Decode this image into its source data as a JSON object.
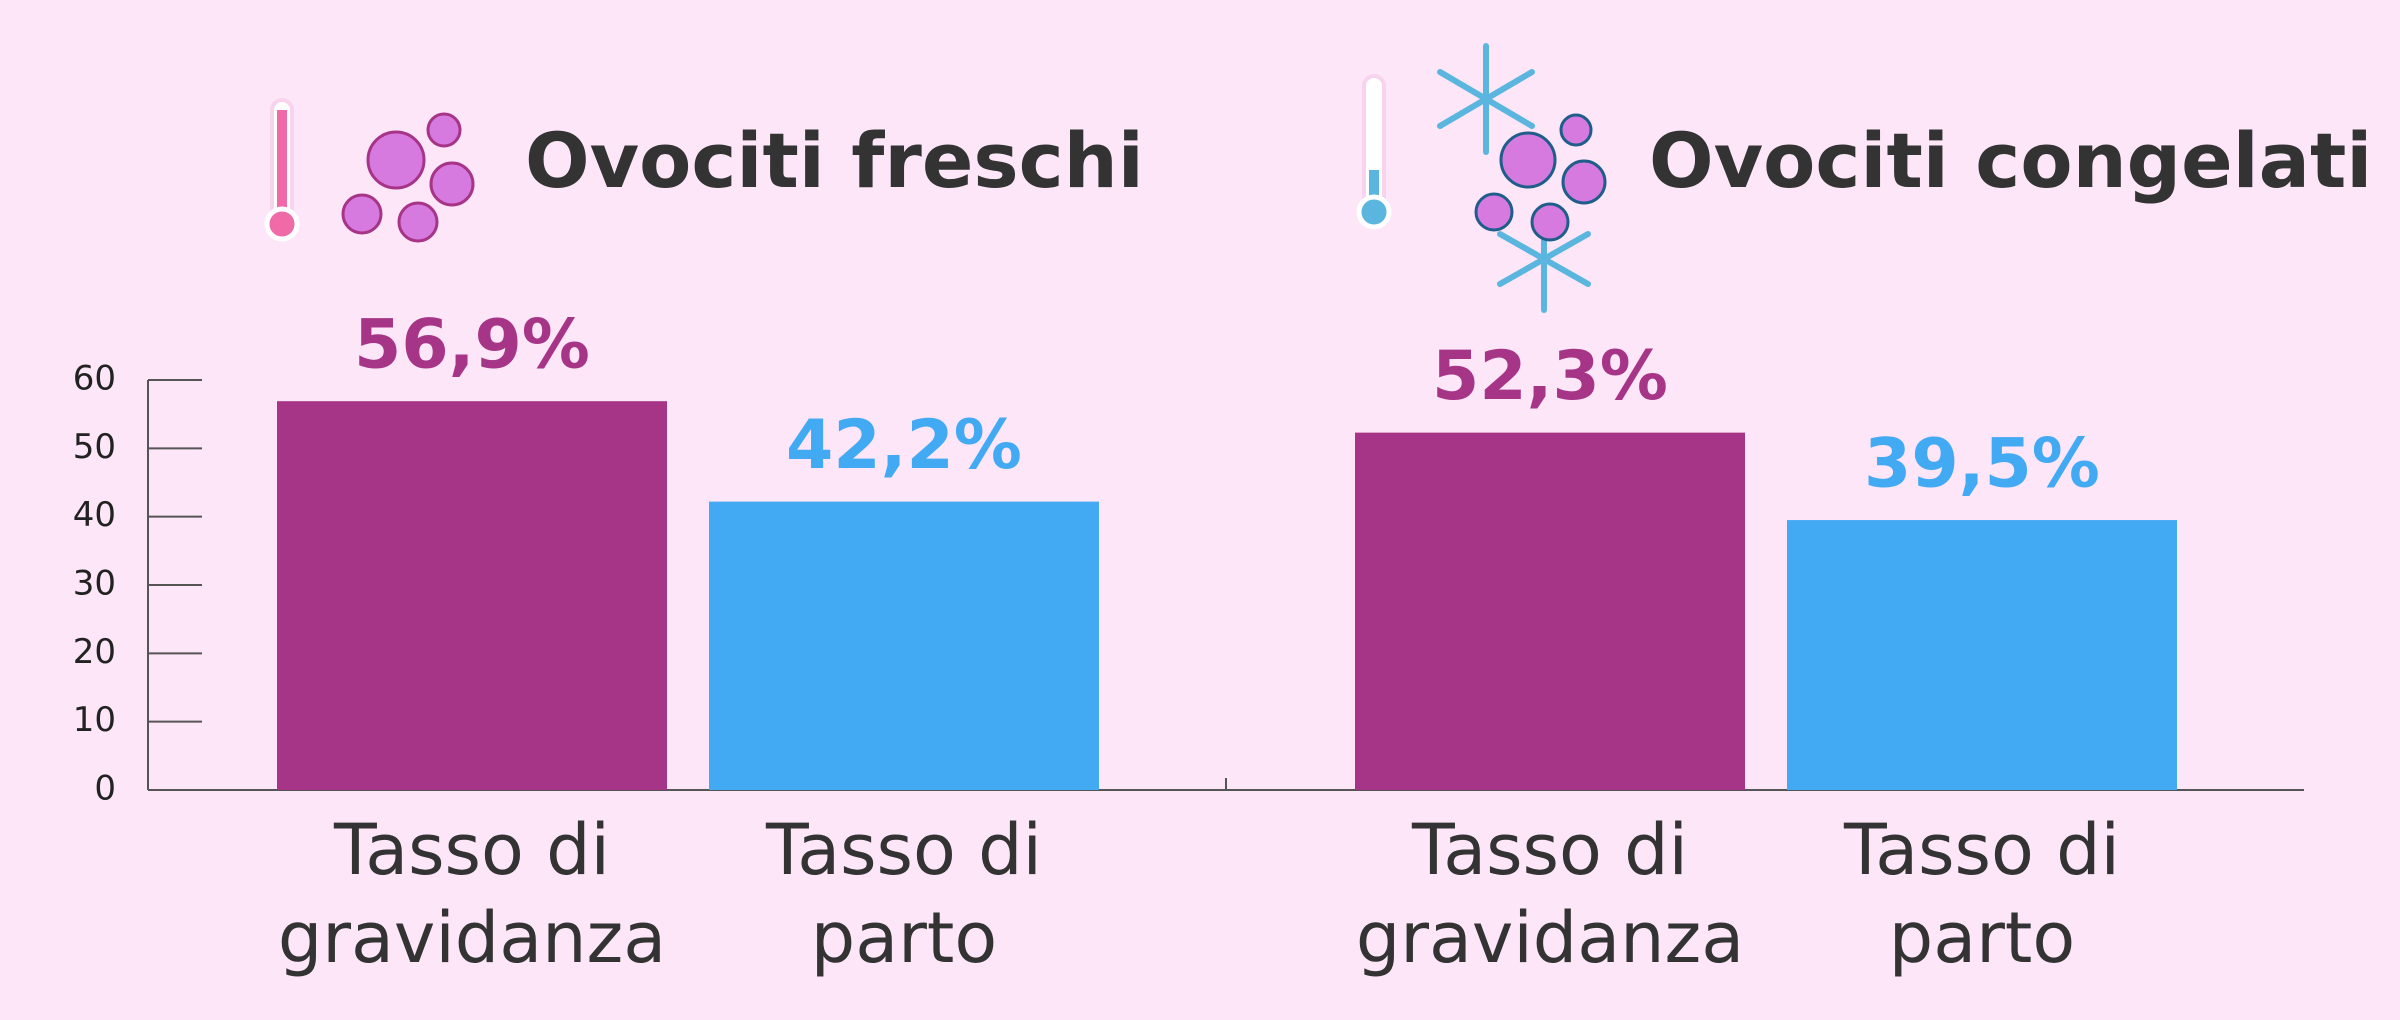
{
  "chart_data": {
    "type": "grouped-bar",
    "groups": [
      {
        "title": "Ovociti freschi",
        "categories": [
          "Tasso di gravidanza",
          "Tasso di parto"
        ],
        "values": [
          56.9,
          42.2
        ],
        "value_labels": [
          "56,9%",
          "42,2%"
        ]
      },
      {
        "title": "Ovociti congelati",
        "categories": [
          "Tasso di gravidanza",
          "Tasso di parto"
        ],
        "values": [
          52.3,
          39.5
        ],
        "value_labels": [
          "52,3%",
          "39,5%"
        ]
      }
    ],
    "colors": [
      "#a63487",
      "#42a9f3"
    ],
    "ylim": [
      0,
      60
    ],
    "yticks": [
      0,
      10,
      20,
      30,
      40,
      50,
      60
    ]
  }
}
